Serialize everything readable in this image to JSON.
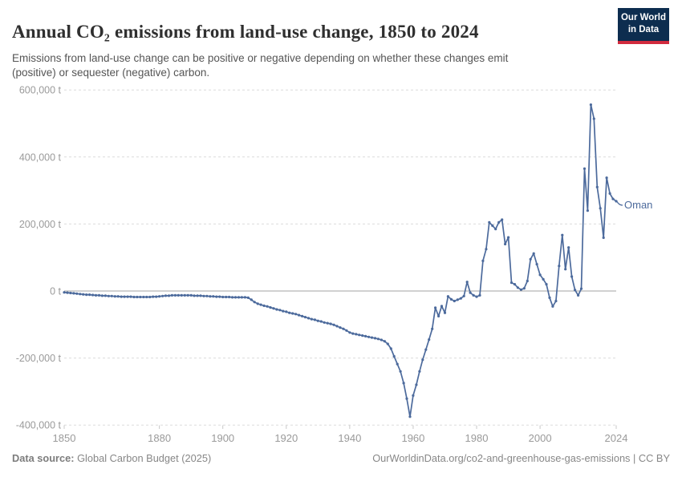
{
  "header": {
    "title": "Annual CO₂ emissions from land-use change, 1850 to 2024",
    "subtitle": "Emissions from land-use change can be positive or negative depending on whether these changes emit (positive) or sequester (negative) carbon."
  },
  "logo": {
    "line1": "Our World",
    "line2": "in Data",
    "bg_color": "#0d2d4f",
    "bar_color": "#d12b3e"
  },
  "footer": {
    "source_label": "Data source:",
    "source_value": " Global Carbon Budget (2025)",
    "right_text": "OurWorldinData.org/co2-and-greenhouse-gas-emissions | CC BY"
  },
  "chart_data": {
    "type": "line",
    "title": "Annual CO₂ emissions from land-use change",
    "unit": "t",
    "x_start": 1850,
    "x_end": 2024,
    "xticks": [
      1850,
      1880,
      1900,
      1920,
      1940,
      1960,
      1980,
      2000,
      2024
    ],
    "yticks": [
      600000,
      400000,
      200000,
      0,
      -200000,
      -400000
    ],
    "ylim": [
      -400000,
      600000
    ],
    "grid": "dashed-horizontal",
    "zero_axis": true,
    "line_color": "#4c6a9c",
    "label_color": "#4c6a9c",
    "axis_text_color": "#9a9a9a",
    "series": [
      {
        "name": "Oman",
        "values": [
          -4000,
          -5000,
          -6000,
          -7000,
          -8000,
          -9000,
          -10000,
          -11000,
          -11000,
          -12000,
          -13000,
          -13000,
          -14000,
          -14000,
          -15000,
          -15000,
          -16000,
          -16000,
          -17000,
          -17000,
          -17000,
          -17000,
          -18000,
          -18000,
          -18000,
          -18000,
          -18000,
          -18000,
          -17000,
          -17000,
          -16000,
          -15000,
          -14000,
          -14000,
          -13000,
          -13000,
          -13000,
          -13000,
          -13000,
          -13000,
          -13000,
          -14000,
          -14000,
          -14000,
          -15000,
          -15000,
          -16000,
          -16000,
          -17000,
          -17000,
          -18000,
          -18000,
          -18000,
          -19000,
          -19000,
          -19000,
          -19000,
          -19000,
          -20000,
          -26000,
          -33000,
          -38000,
          -41000,
          -44000,
          -46000,
          -49000,
          -52000,
          -55000,
          -57000,
          -60000,
          -62000,
          -65000,
          -67000,
          -69000,
          -72000,
          -75000,
          -78000,
          -81000,
          -84000,
          -86000,
          -89000,
          -91000,
          -94000,
          -96000,
          -98000,
          -101000,
          -105000,
          -109000,
          -113000,
          -118000,
          -124000,
          -127000,
          -129000,
          -131000,
          -133000,
          -135000,
          -137000,
          -139000,
          -141000,
          -143000,
          -146000,
          -150000,
          -158000,
          -172000,
          -195000,
          -218000,
          -240000,
          -275000,
          -321000,
          -375000,
          -312000,
          -280000,
          -240000,
          -205000,
          -175000,
          -145000,
          -113000,
          -50000,
          -75000,
          -45000,
          -65000,
          -16000,
          -25000,
          -30000,
          -26000,
          -22000,
          -15000,
          27000,
          -5000,
          -13000,
          -17000,
          -13000,
          90000,
          125000,
          205000,
          195000,
          185000,
          205000,
          213000,
          140000,
          160000,
          25000,
          20000,
          10000,
          4000,
          8000,
          30000,
          95000,
          112000,
          80000,
          48000,
          35000,
          20000,
          -20000,
          -46000,
          -30000,
          75000,
          167000,
          65000,
          130000,
          43000,
          3000,
          -13000,
          7000,
          365000,
          240000,
          556000,
          514000,
          310000,
          247000,
          159000,
          338000,
          291000,
          275000,
          268000
        ]
      }
    ]
  }
}
